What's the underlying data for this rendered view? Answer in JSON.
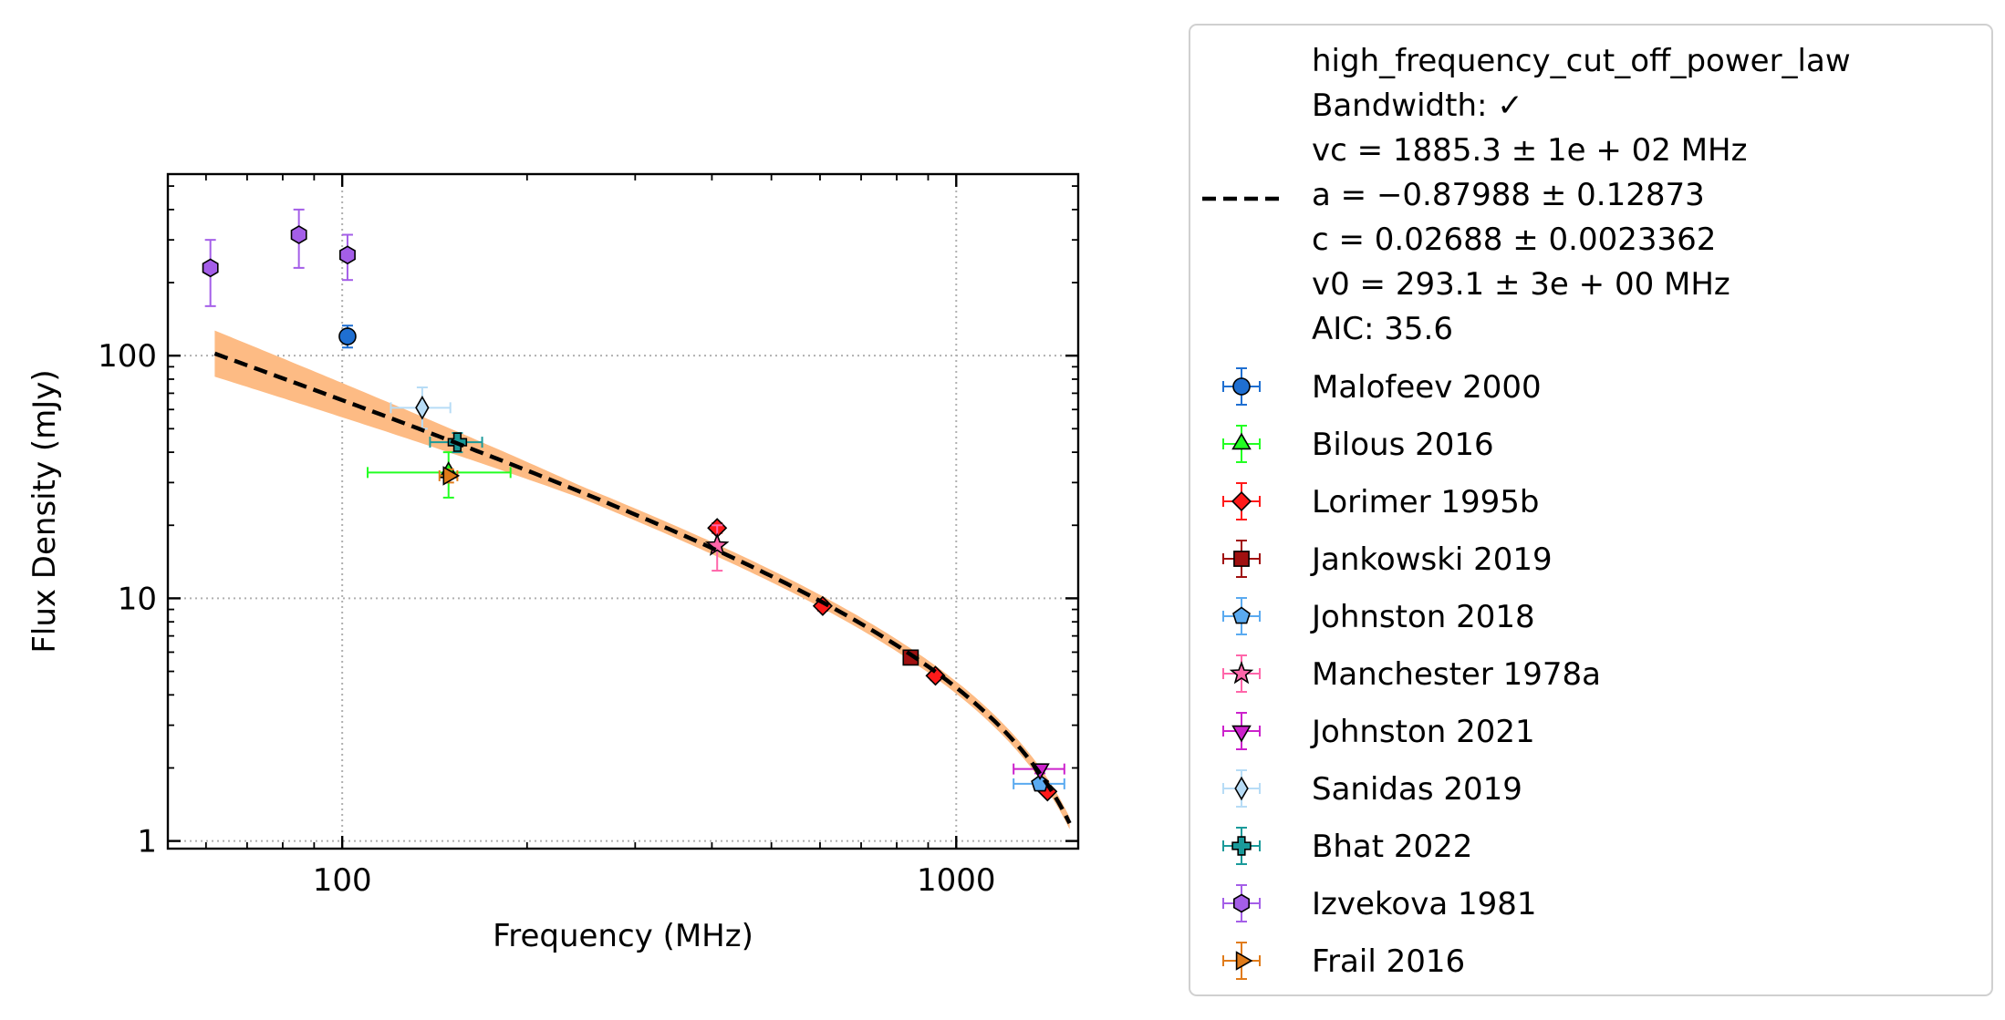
{
  "chart_data": {
    "type": "scatter",
    "xlabel": "Frequency (MHz)",
    "ylabel": "Flux Density (mJy)",
    "xscale": "log",
    "yscale": "log",
    "xlim": [
      52,
      1580
    ],
    "ylim": [
      0.93,
      560
    ],
    "grid": true,
    "x_ticks": [
      100,
      1000
    ],
    "x_tick_labels": [
      "100",
      "1000"
    ],
    "y_ticks": [
      1,
      10,
      100
    ],
    "y_tick_labels": [
      "1",
      "10",
      "100"
    ],
    "legend_position": "outside-right",
    "fit": {
      "lines": [
        "high_frequency_cut_off_power_law",
        "Bandwidth: ✓",
        "vc = 1885.3 ± 1e + 02 MHz",
        "a = −0.87988 ± 0.12873",
        "c = 0.02688 ± 0.0023362",
        "v0 = 293.1 ± 3e + 00 MHz",
        "AIC: 35.6"
      ],
      "model": "high_frequency_cut_off_power_law",
      "vc": 1885.3,
      "a": -0.87988,
      "c": 0.02688,
      "v0": 293.1,
      "x_range": [
        62,
        1530
      ],
      "line_color": "#000000",
      "band_color": "#fdbb84"
    },
    "series": [
      {
        "name": "Malofeev 2000",
        "marker": "circle",
        "color": "#1f6fd1",
        "points": [
          {
            "x": 102,
            "y": 120,
            "ylo": 108,
            "yhi": 133
          }
        ]
      },
      {
        "name": "Bilous 2016",
        "marker": "triangle-up",
        "color": "#22ff22",
        "points": [
          {
            "x": 149,
            "y": 33,
            "xlo": 110,
            "xhi": 188,
            "ylo": 26,
            "yhi": 40
          }
        ]
      },
      {
        "name": "Lorimer 1995b",
        "marker": "diamond",
        "color": "#ff1a1a",
        "points": [
          {
            "x": 408,
            "y": 19.5,
            "ylo": 18.6,
            "yhi": 20.4
          },
          {
            "x": 606,
            "y": 9.3,
            "ylo": 8.9,
            "yhi": 9.7
          },
          {
            "x": 925,
            "y": 4.8,
            "ylo": 4.6,
            "yhi": 5.0
          },
          {
            "x": 1408,
            "y": 1.6,
            "ylo": 1.55,
            "yhi": 1.65
          }
        ]
      },
      {
        "name": "Jankowski 2019",
        "marker": "square",
        "color": "#a01010",
        "points": [
          {
            "x": 843,
            "y": 5.7,
            "ylo": 5.4,
            "yhi": 6.0
          }
        ]
      },
      {
        "name": "Johnston 2018",
        "marker": "pentagon",
        "color": "#5aaaf0",
        "points": [
          {
            "x": 1369,
            "y": 1.72,
            "xlo": 1240,
            "xhi": 1500,
            "ylo": 1.65,
            "yhi": 1.79
          }
        ]
      },
      {
        "name": "Manchester 1978a",
        "marker": "star",
        "color": "#ff66aa",
        "points": [
          {
            "x": 408,
            "y": 16.5,
            "ylo": 13,
            "yhi": 20
          }
        ]
      },
      {
        "name": "Johnston 2021",
        "marker": "triangle-down",
        "color": "#cc22cc",
        "points": [
          {
            "x": 1369,
            "y": 1.98,
            "xlo": 1240,
            "xhi": 1500,
            "ylo": 1.9,
            "yhi": 2.06
          }
        ]
      },
      {
        "name": "Sanidas 2019",
        "marker": "thin-diamond",
        "color": "#b7dcf6",
        "points": [
          {
            "x": 135,
            "y": 61,
            "xlo": 120,
            "xhi": 150,
            "ylo": 50,
            "yhi": 74
          }
        ]
      },
      {
        "name": "Bhat 2022",
        "marker": "plus",
        "color": "#1a9a9a",
        "points": [
          {
            "x": 154,
            "y": 44,
            "xlo": 139,
            "xhi": 169,
            "ylo": 40,
            "yhi": 48
          }
        ]
      },
      {
        "name": "Izvekova 1981",
        "marker": "hexagon",
        "color": "#a45ee8",
        "points": [
          {
            "x": 61,
            "y": 230,
            "ylo": 160,
            "yhi": 300
          },
          {
            "x": 85,
            "y": 315,
            "ylo": 230,
            "yhi": 400
          },
          {
            "x": 102,
            "y": 260,
            "ylo": 205,
            "yhi": 315
          }
        ]
      },
      {
        "name": "Frail 2016",
        "marker": "triangle-right",
        "color": "#e07b1a",
        "points": [
          {
            "x": 149,
            "y": 32,
            "xlo": 144,
            "xhi": 154,
            "ylo": 30,
            "yhi": 34
          }
        ]
      }
    ]
  }
}
